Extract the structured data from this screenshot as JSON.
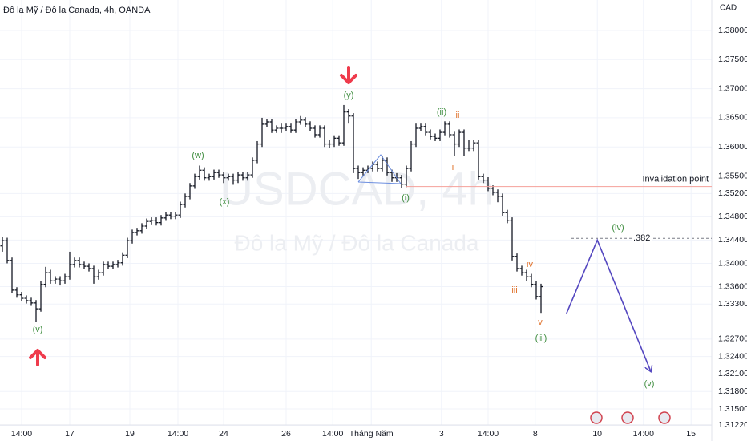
{
  "chart_data": {
    "type": "ohlc",
    "title": "Đô la Mỹ / Đô la Canada, 4h, OANDA",
    "watermark": "USDCAD, 4h",
    "watermark_subtitle": "Đô la Mỹ / Đô la Canada",
    "y_axis_unit": "CAD",
    "color": "#131722",
    "grid": true,
    "ohlc": [
      [
        1.343,
        1.3446,
        1.342,
        1.3439
      ],
      [
        1.3439,
        1.3444,
        1.34,
        1.3405
      ],
      [
        1.3405,
        1.341,
        1.3349,
        1.3354
      ],
      [
        1.3354,
        1.3359,
        1.3341,
        1.3346
      ],
      [
        1.3346,
        1.3351,
        1.3335,
        1.334
      ],
      [
        1.334,
        1.3345,
        1.3331,
        1.3336
      ],
      [
        1.3336,
        1.3341,
        1.3327,
        1.3332
      ],
      [
        1.3332,
        1.3337,
        1.33,
        1.3322
      ],
      [
        1.3322,
        1.3369,
        1.3317,
        1.3364
      ],
      [
        1.3364,
        1.3394,
        1.3359,
        1.3384
      ],
      [
        1.3384,
        1.3389,
        1.3365,
        1.337
      ],
      [
        1.337,
        1.3378,
        1.3365,
        1.3373
      ],
      [
        1.3373,
        1.3378,
        1.3362,
        1.337
      ],
      [
        1.337,
        1.3382,
        1.3365,
        1.3377
      ],
      [
        1.3377,
        1.342,
        1.3372,
        1.3398
      ],
      [
        1.3398,
        1.341,
        1.3393,
        1.3405
      ],
      [
        1.3405,
        1.341,
        1.3393,
        1.3398
      ],
      [
        1.3398,
        1.3403,
        1.339,
        1.3395
      ],
      [
        1.3395,
        1.34,
        1.3386,
        1.3391
      ],
      [
        1.3391,
        1.3396,
        1.3365,
        1.3377
      ],
      [
        1.3377,
        1.3389,
        1.3372,
        1.3384
      ],
      [
        1.3384,
        1.3403,
        1.3379,
        1.3398
      ],
      [
        1.3398,
        1.3403,
        1.339,
        1.3395
      ],
      [
        1.3395,
        1.3403,
        1.339,
        1.3398
      ],
      [
        1.3398,
        1.3406,
        1.3393,
        1.3401
      ],
      [
        1.3401,
        1.3419,
        1.3396,
        1.3414
      ],
      [
        1.3414,
        1.3444,
        1.3409,
        1.3439
      ],
      [
        1.3439,
        1.3458,
        1.3434,
        1.3453
      ],
      [
        1.3453,
        1.3461,
        1.3448,
        1.3456
      ],
      [
        1.3456,
        1.3469,
        1.3451,
        1.3464
      ],
      [
        1.3464,
        1.3477,
        1.3459,
        1.3472
      ],
      [
        1.3472,
        1.3479,
        1.3467,
        1.3474
      ],
      [
        1.3474,
        1.3479,
        1.3465,
        1.347
      ],
      [
        1.347,
        1.3483,
        1.3465,
        1.3478
      ],
      [
        1.3478,
        1.3488,
        1.3473,
        1.3483
      ],
      [
        1.3483,
        1.3488,
        1.3476,
        1.3481
      ],
      [
        1.3481,
        1.3488,
        1.3476,
        1.3483
      ],
      [
        1.3483,
        1.3506,
        1.3478,
        1.3501
      ],
      [
        1.3501,
        1.352,
        1.3496,
        1.3515
      ],
      [
        1.3515,
        1.3538,
        1.351,
        1.3533
      ],
      [
        1.3533,
        1.3554,
        1.3528,
        1.3549
      ],
      [
        1.3549,
        1.3568,
        1.3544,
        1.356
      ],
      [
        1.356,
        1.3565,
        1.3542,
        1.3547
      ],
      [
        1.3547,
        1.3554,
        1.3542,
        1.3549
      ],
      [
        1.3549,
        1.3561,
        1.3544,
        1.3556
      ],
      [
        1.3556,
        1.3561,
        1.3547,
        1.3552
      ],
      [
        1.3552,
        1.3557,
        1.3538,
        1.3547
      ],
      [
        1.3547,
        1.3554,
        1.3542,
        1.3549
      ],
      [
        1.3549,
        1.3554,
        1.3535,
        1.3543
      ],
      [
        1.3543,
        1.3557,
        1.3538,
        1.3552
      ],
      [
        1.3552,
        1.3557,
        1.3542,
        1.3547
      ],
      [
        1.3547,
        1.3557,
        1.3542,
        1.3552
      ],
      [
        1.3552,
        1.3582,
        1.3547,
        1.3577
      ],
      [
        1.3577,
        1.361,
        1.3572,
        1.3605
      ],
      [
        1.3605,
        1.365,
        1.36,
        1.3639
      ],
      [
        1.3639,
        1.3648,
        1.3634,
        1.3643
      ],
      [
        1.3643,
        1.3648,
        1.3624,
        1.3629
      ],
      [
        1.3629,
        1.3637,
        1.3624,
        1.3632
      ],
      [
        1.3632,
        1.364,
        1.3624,
        1.3632
      ],
      [
        1.3632,
        1.364,
        1.3627,
        1.3635
      ],
      [
        1.3635,
        1.364,
        1.3624,
        1.3629
      ],
      [
        1.3629,
        1.3648,
        1.3624,
        1.3643
      ],
      [
        1.3643,
        1.3653,
        1.3638,
        1.3646
      ],
      [
        1.3646,
        1.3651,
        1.3634,
        1.3639
      ],
      [
        1.3639,
        1.3644,
        1.3627,
        1.3632
      ],
      [
        1.3632,
        1.3637,
        1.3616,
        1.3621
      ],
      [
        1.3621,
        1.3637,
        1.3616,
        1.3632
      ],
      [
        1.3632,
        1.3637,
        1.36,
        1.3605
      ],
      [
        1.3605,
        1.3612,
        1.3598,
        1.3605
      ],
      [
        1.3605,
        1.362,
        1.36,
        1.3615
      ],
      [
        1.3615,
        1.362,
        1.3602,
        1.3607
      ],
      [
        1.3607,
        1.3672,
        1.3602,
        1.366
      ],
      [
        1.366,
        1.3665,
        1.364,
        1.3653
      ],
      [
        1.3653,
        1.3658,
        1.3555,
        1.3563
      ],
      [
        1.3563,
        1.3568,
        1.3545,
        1.3556
      ],
      [
        1.3556,
        1.3565,
        1.3551,
        1.356
      ],
      [
        1.356,
        1.3568,
        1.3555,
        1.3563
      ],
      [
        1.3563,
        1.3575,
        1.3558,
        1.357
      ],
      [
        1.357,
        1.3575,
        1.3558,
        1.3563
      ],
      [
        1.3563,
        1.3585,
        1.3558,
        1.3577
      ],
      [
        1.3577,
        1.3582,
        1.3551,
        1.3556
      ],
      [
        1.3556,
        1.3561,
        1.354,
        1.3547
      ],
      [
        1.3547,
        1.3555,
        1.354,
        1.3547
      ],
      [
        1.3547,
        1.3552,
        1.353,
        1.3536
      ],
      [
        1.3536,
        1.3568,
        1.3531,
        1.3563
      ],
      [
        1.3563,
        1.361,
        1.3558,
        1.3605
      ],
      [
        1.3605,
        1.364,
        1.36,
        1.3632
      ],
      [
        1.3632,
        1.364,
        1.3627,
        1.3635
      ],
      [
        1.3635,
        1.364,
        1.362,
        1.3625
      ],
      [
        1.3625,
        1.363,
        1.3613,
        1.3618
      ],
      [
        1.3618,
        1.3623,
        1.361,
        1.3615
      ],
      [
        1.3615,
        1.363,
        1.361,
        1.3625
      ],
      [
        1.3625,
        1.3644,
        1.362,
        1.3639
      ],
      [
        1.3639,
        1.3644,
        1.3616,
        1.3621
      ],
      [
        1.3621,
        1.3626,
        1.3585,
        1.3605
      ],
      [
        1.3605,
        1.363,
        1.36,
        1.3625
      ],
      [
        1.3625,
        1.363,
        1.3585,
        1.3598
      ],
      [
        1.3598,
        1.3612,
        1.3593,
        1.3598
      ],
      [
        1.3598,
        1.3612,
        1.3593,
        1.3607
      ],
      [
        1.3607,
        1.3612,
        1.3544,
        1.3549
      ],
      [
        1.3549,
        1.3554,
        1.3538,
        1.3543
      ],
      [
        1.3543,
        1.3548,
        1.3524,
        1.3529
      ],
      [
        1.3529,
        1.3534,
        1.3517,
        1.3522
      ],
      [
        1.3522,
        1.3527,
        1.3505,
        1.3515
      ],
      [
        1.3515,
        1.352,
        1.3482,
        1.3487
      ],
      [
        1.3487,
        1.3492,
        1.3469,
        1.3474
      ],
      [
        1.3474,
        1.3479,
        1.3405,
        1.3412
      ],
      [
        1.3412,
        1.3417,
        1.3386,
        1.3391
      ],
      [
        1.3391,
        1.3396,
        1.3379,
        1.3384
      ],
      [
        1.3384,
        1.3389,
        1.337,
        1.3377
      ],
      [
        1.3377,
        1.3382,
        1.3359,
        1.3364
      ],
      [
        1.3364,
        1.3369,
        1.3338,
        1.3343
      ],
      [
        1.3343,
        1.3365,
        1.3315,
        1.336
      ]
    ],
    "xlim": [
      -0.5,
      147.5
    ],
    "xticks": [
      {
        "value": 4,
        "label": "14:00"
      },
      {
        "value": 14,
        "label": "17"
      },
      {
        "value": 26.5,
        "label": "19"
      },
      {
        "value": 36.5,
        "label": "14:00"
      },
      {
        "value": 46,
        "label": "24"
      },
      {
        "value": 59,
        "label": "26"
      },
      {
        "value": 68.7,
        "label": "14:00"
      },
      {
        "value": 76.7,
        "label": "Tháng Năm"
      },
      {
        "value": 91.3,
        "label": "3"
      },
      {
        "value": 101,
        "label": "14:00"
      },
      {
        "value": 110.8,
        "label": "8"
      },
      {
        "value": 123.7,
        "label": "10"
      },
      {
        "value": 133.3,
        "label": "14:00"
      },
      {
        "value": 143.2,
        "label": "15"
      }
    ],
    "ylim": [
      1.31225,
      1.38523
    ],
    "yticks": [
      {
        "value": 1.38,
        "label": "1.38000"
      },
      {
        "value": 1.375,
        "label": "1.37500"
      },
      {
        "value": 1.37,
        "label": "1.37000"
      },
      {
        "value": 1.365,
        "label": "1.36500"
      },
      {
        "value": 1.36,
        "label": "1.36000"
      },
      {
        "value": 1.355,
        "label": "1.35500"
      },
      {
        "value": 1.352,
        "label": "1.35200"
      },
      {
        "value": 1.348,
        "label": "1.34800"
      },
      {
        "value": 1.344,
        "label": "1.34400"
      },
      {
        "value": 1.34,
        "label": "1.34000"
      },
      {
        "value": 1.336,
        "label": "1.33600"
      },
      {
        "value": 1.333,
        "label": "1.33300"
      },
      {
        "value": 1.327,
        "label": "1.32700"
      },
      {
        "value": 1.324,
        "label": "1.32400"
      },
      {
        "value": 1.321,
        "label": "1.32100"
      },
      {
        "value": 1.318,
        "label": "1.31800"
      },
      {
        "value": 1.315,
        "label": "1.31500"
      },
      {
        "value": 1.3122,
        "label": "1.31220"
      }
    ],
    "levels": [
      {
        "label": "Invalidation point",
        "value": 1.3532,
        "color": "#f4a09a",
        "dashed": false
      },
      {
        "label": ".382",
        "value": 1.3443,
        "color": "#787b86",
        "dashed": true
      }
    ],
    "projection": {
      "x": [
        117.3,
        123.7,
        134.8
      ],
      "values": [
        1.3314,
        1.344,
        1.3215
      ],
      "color": "#5447c0"
    },
    "annotations": [
      {
        "text": "(v)",
        "color": "#3d8c3d"
      },
      {
        "text": "(w)",
        "color": "#3d8c3d"
      },
      {
        "text": "(x)",
        "color": "#3d8c3d"
      },
      {
        "text": "(y)",
        "color": "#3d8c3d"
      },
      {
        "text": "(i)",
        "color": "#3d8c3d"
      },
      {
        "text": "(ii)",
        "color": "#3d8c3d"
      },
      {
        "text": "ii",
        "color": "#e0712a"
      },
      {
        "text": "i",
        "color": "#e0712a"
      },
      {
        "text": "iii",
        "color": "#e0712a"
      },
      {
        "text": "iv",
        "color": "#e0712a"
      },
      {
        "text": "v",
        "color": "#e0712a"
      },
      {
        "text": "(iii)",
        "color": "#3d8c3d"
      },
      {
        "text": "(iv)",
        "color": "#3d8c3d"
      },
      {
        "text": "(v)",
        "color": "#3d8c3d"
      }
    ]
  }
}
